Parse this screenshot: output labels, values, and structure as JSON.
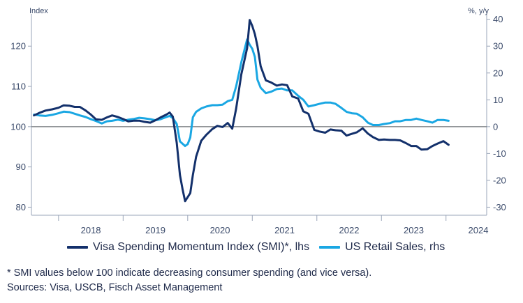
{
  "chart_data": {
    "type": "line",
    "left_axis": {
      "label": "Index",
      "ylim": [
        78,
        128
      ],
      "ticks": [
        80,
        90,
        100,
        110,
        120
      ]
    },
    "right_axis": {
      "label": "%, y/y",
      "ylim": [
        -33,
        42
      ],
      "ticks": [
        -30,
        -20,
        -10,
        0,
        10,
        20,
        30,
        40
      ]
    },
    "x_axis": {
      "xlim": [
        2017.58,
        2024.63
      ],
      "tick_labels": [
        "2018",
        "2019",
        "2020",
        "2021",
        "2022",
        "2023",
        "2024"
      ],
      "year_ticks": [
        2018,
        2019,
        2020,
        2021,
        2022,
        2023,
        2024
      ]
    },
    "reference_line": {
      "axis": "left",
      "value": 100
    },
    "grid": false,
    "legend_position": "bottom",
    "series": [
      {
        "name": "Visa Spending Momentum Index (SMI)*, lhs",
        "axis": "left",
        "color": "#13306b",
        "points": [
          [
            2017.62,
            102.8
          ],
          [
            2017.7,
            103.4
          ],
          [
            2017.8,
            104.0
          ],
          [
            2017.9,
            104.3
          ],
          [
            2018.0,
            104.7
          ],
          [
            2018.08,
            105.3
          ],
          [
            2018.17,
            105.2
          ],
          [
            2018.25,
            104.9
          ],
          [
            2018.33,
            104.9
          ],
          [
            2018.42,
            104.0
          ],
          [
            2018.5,
            103.0
          ],
          [
            2018.58,
            101.8
          ],
          [
            2018.67,
            101.7
          ],
          [
            2018.75,
            102.3
          ],
          [
            2018.83,
            102.8
          ],
          [
            2018.92,
            102.4
          ],
          [
            2019.0,
            101.9
          ],
          [
            2019.08,
            101.3
          ],
          [
            2019.17,
            101.5
          ],
          [
            2019.25,
            101.5
          ],
          [
            2019.33,
            101.2
          ],
          [
            2019.42,
            101.0
          ],
          [
            2019.5,
            101.6
          ],
          [
            2019.58,
            102.3
          ],
          [
            2019.67,
            103.0
          ],
          [
            2019.72,
            103.5
          ],
          [
            2019.77,
            102.5
          ],
          [
            2019.83,
            96.0
          ],
          [
            2019.88,
            88.0
          ],
          [
            2019.92,
            84.5
          ],
          [
            2019.96,
            81.5
          ],
          [
            2020.04,
            83.5
          ],
          [
            2020.08,
            88.0
          ],
          [
            2020.13,
            92.5
          ],
          [
            2020.21,
            96.5
          ],
          [
            2020.29,
            98.0
          ],
          [
            2020.38,
            99.4
          ],
          [
            2020.46,
            100.2
          ],
          [
            2020.54,
            99.9
          ],
          [
            2020.62,
            100.9
          ],
          [
            2020.69,
            99.5
          ],
          [
            2020.75,
            104.5
          ],
          [
            2020.83,
            113.0
          ],
          [
            2020.92,
            119.5
          ],
          [
            2020.96,
            126.5
          ],
          [
            2021.0,
            125.0
          ],
          [
            2021.04,
            123.0
          ],
          [
            2021.08,
            120.0
          ],
          [
            2021.13,
            115.0
          ],
          [
            2021.21,
            111.5
          ],
          [
            2021.29,
            111.0
          ],
          [
            2021.38,
            110.2
          ],
          [
            2021.46,
            110.5
          ],
          [
            2021.54,
            110.3
          ],
          [
            2021.62,
            107.5
          ],
          [
            2021.71,
            107.0
          ],
          [
            2021.79,
            103.8
          ],
          [
            2021.87,
            103.2
          ],
          [
            2021.96,
            99.2
          ],
          [
            2022.04,
            98.8
          ],
          [
            2022.13,
            98.5
          ],
          [
            2022.21,
            99.3
          ],
          [
            2022.29,
            99.1
          ],
          [
            2022.38,
            99.0
          ],
          [
            2022.46,
            97.8
          ],
          [
            2022.54,
            98.2
          ],
          [
            2022.62,
            98.6
          ],
          [
            2022.71,
            99.6
          ],
          [
            2022.79,
            98.3
          ],
          [
            2022.87,
            97.4
          ],
          [
            2022.96,
            96.7
          ],
          [
            2023.04,
            96.8
          ],
          [
            2023.13,
            96.7
          ],
          [
            2023.21,
            96.7
          ],
          [
            2023.29,
            96.6
          ],
          [
            2023.38,
            95.9
          ],
          [
            2023.46,
            95.2
          ],
          [
            2023.54,
            95.2
          ],
          [
            2023.62,
            94.3
          ],
          [
            2023.71,
            94.4
          ],
          [
            2023.79,
            95.2
          ],
          [
            2023.87,
            95.8
          ],
          [
            2023.96,
            96.4
          ],
          [
            2024.04,
            95.5
          ]
        ]
      },
      {
        "name": "US Retail Sales, rhs",
        "axis": "right",
        "color": "#1aa7e3",
        "points": [
          [
            2017.62,
            4.5
          ],
          [
            2017.7,
            4.2
          ],
          [
            2017.8,
            4.0
          ],
          [
            2017.9,
            4.4
          ],
          [
            2018.0,
            5.0
          ],
          [
            2018.08,
            5.6
          ],
          [
            2018.17,
            5.4
          ],
          [
            2018.25,
            4.8
          ],
          [
            2018.33,
            4.2
          ],
          [
            2018.42,
            3.6
          ],
          [
            2018.5,
            2.8
          ],
          [
            2018.58,
            2.1
          ],
          [
            2018.67,
            1.2
          ],
          [
            2018.75,
            2.0
          ],
          [
            2018.83,
            2.2
          ],
          [
            2018.92,
            2.6
          ],
          [
            2019.0,
            2.2
          ],
          [
            2019.08,
            2.6
          ],
          [
            2019.17,
            2.9
          ],
          [
            2019.25,
            3.3
          ],
          [
            2019.33,
            3.1
          ],
          [
            2019.42,
            2.8
          ],
          [
            2019.5,
            2.4
          ],
          [
            2019.58,
            2.8
          ],
          [
            2019.67,
            3.6
          ],
          [
            2019.72,
            4.0
          ],
          [
            2019.77,
            3.2
          ],
          [
            2019.83,
            1.0
          ],
          [
            2019.88,
            -5.5
          ],
          [
            2019.96,
            -7.2
          ],
          [
            2020.0,
            -6.5
          ],
          [
            2020.04,
            -4.0
          ],
          [
            2020.08,
            3.5
          ],
          [
            2020.13,
            5.5
          ],
          [
            2020.21,
            6.8
          ],
          [
            2020.29,
            7.5
          ],
          [
            2020.38,
            8.0
          ],
          [
            2020.46,
            8.0
          ],
          [
            2020.54,
            8.2
          ],
          [
            2020.62,
            9.5
          ],
          [
            2020.69,
            10.0
          ],
          [
            2020.75,
            15.0
          ],
          [
            2020.83,
            24.0
          ],
          [
            2020.92,
            32.5
          ],
          [
            2020.96,
            30.5
          ],
          [
            2021.0,
            29.0
          ],
          [
            2021.04,
            26.0
          ],
          [
            2021.08,
            17.5
          ],
          [
            2021.13,
            14.5
          ],
          [
            2021.21,
            12.5
          ],
          [
            2021.29,
            13.0
          ],
          [
            2021.38,
            14.0
          ],
          [
            2021.46,
            14.2
          ],
          [
            2021.54,
            13.5
          ],
          [
            2021.62,
            13.5
          ],
          [
            2021.71,
            11.5
          ],
          [
            2021.79,
            10.0
          ],
          [
            2021.87,
            7.5
          ],
          [
            2021.96,
            8.0
          ],
          [
            2022.04,
            8.5
          ],
          [
            2022.13,
            9.0
          ],
          [
            2022.21,
            9.0
          ],
          [
            2022.29,
            8.5
          ],
          [
            2022.38,
            7.0
          ],
          [
            2022.46,
            5.5
          ],
          [
            2022.54,
            5.0
          ],
          [
            2022.62,
            4.8
          ],
          [
            2022.71,
            3.5
          ],
          [
            2022.79,
            1.5
          ],
          [
            2022.87,
            0.6
          ],
          [
            2022.96,
            0.6
          ],
          [
            2023.04,
            1.0
          ],
          [
            2023.13,
            1.3
          ],
          [
            2023.21,
            2.0
          ],
          [
            2023.29,
            2.0
          ],
          [
            2023.38,
            2.5
          ],
          [
            2023.46,
            2.5
          ],
          [
            2023.54,
            3.0
          ],
          [
            2023.62,
            2.5
          ],
          [
            2023.71,
            2.0
          ],
          [
            2023.79,
            1.5
          ],
          [
            2023.87,
            2.5
          ],
          [
            2023.96,
            2.5
          ],
          [
            2024.04,
            2.2
          ]
        ]
      }
    ]
  },
  "footnote": "* SMI values below 100 indicate decreasing consumer spending (and vice versa).",
  "sources": "Sources: Visa, USCB, Fisch Asset Management"
}
